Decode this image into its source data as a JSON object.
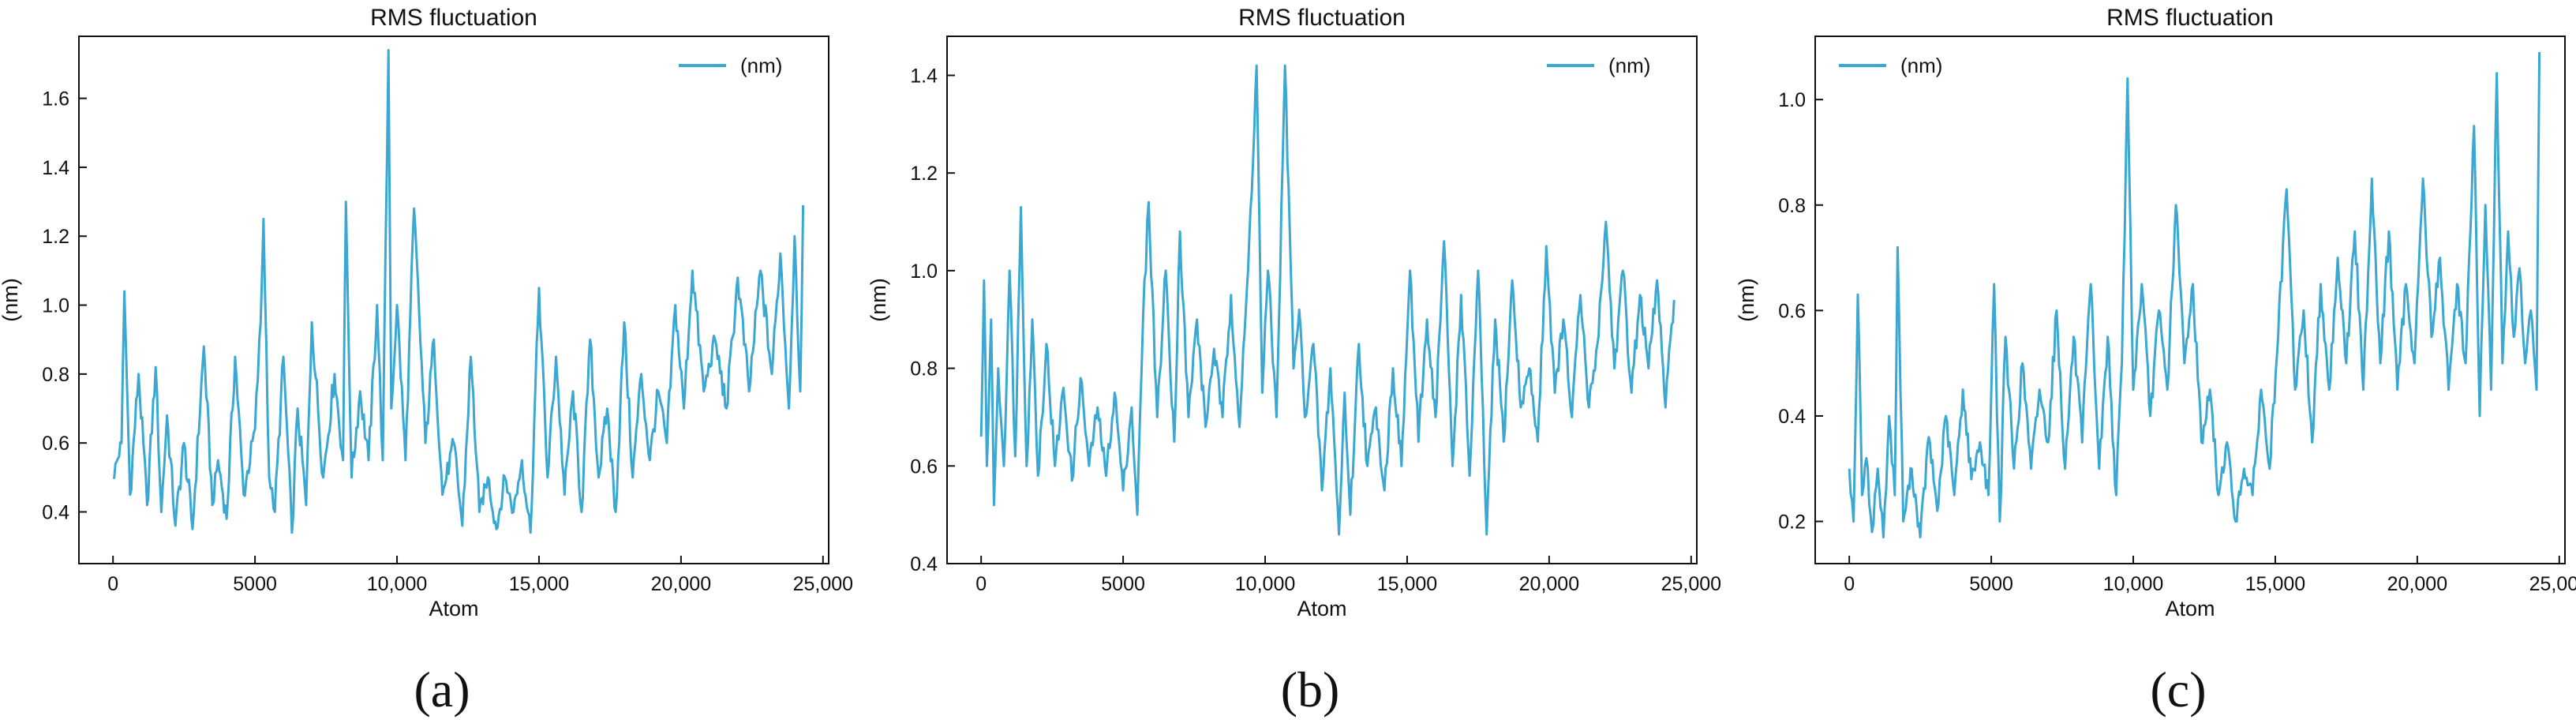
{
  "line_color": "#3aa8d3",
  "chart_data": [
    {
      "type": "line",
      "caption": "(a)",
      "title": "RMS fluctuation",
      "xlabel": "Atom",
      "ylabel": "(nm)",
      "xlim": [
        -1200,
        25200
      ],
      "ylim": [
        0.25,
        1.78
      ],
      "xticks": [
        0,
        5000,
        10000,
        15000,
        20000,
        25000
      ],
      "xtick_labels": [
        "0",
        "5000",
        "10,000",
        "15,000",
        "20,000",
        "25,000"
      ],
      "yticks": [
        0.4,
        0.6,
        0.8,
        1.0,
        1.2,
        1.4,
        1.6
      ],
      "ytick_labels": [
        "0.4",
        "0.6",
        "0.8",
        "1.0",
        "1.2",
        "1.4",
        "1.6"
      ],
      "legend": "upper-right",
      "series": [
        {
          "name": "(nm)",
          "x": [
            0,
            300,
            400,
            600,
            900,
            1200,
            1500,
            1700,
            1900,
            2200,
            2500,
            2800,
            3200,
            3500,
            3700,
            4000,
            4300,
            4600,
            5000,
            5200,
            5300,
            5500,
            5700,
            6000,
            6300,
            6500,
            6800,
            7000,
            7400,
            7800,
            8100,
            8200,
            8400,
            8700,
            9000,
            9300,
            9500,
            9700,
            9800,
            10000,
            10300,
            10600,
            11000,
            11300,
            11600,
            12000,
            12300,
            12600,
            12900,
            13200,
            13500,
            13800,
            14100,
            14400,
            14700,
            15000,
            15300,
            15600,
            15900,
            16200,
            16500,
            16800,
            17100,
            17400,
            17700,
            18000,
            18300,
            18600,
            18900,
            19200,
            19500,
            19800,
            20100,
            20400,
            20800,
            21200,
            21600,
            22000,
            22400,
            22800,
            23200,
            23500,
            23800,
            24000,
            24200,
            24300
          ],
          "y": [
            0.5,
            0.6,
            1.04,
            0.45,
            0.8,
            0.42,
            0.82,
            0.4,
            0.68,
            0.36,
            0.6,
            0.35,
            0.88,
            0.42,
            0.55,
            0.38,
            0.85,
            0.45,
            0.64,
            0.95,
            1.25,
            0.5,
            0.4,
            0.85,
            0.34,
            0.7,
            0.42,
            0.95,
            0.5,
            0.8,
            0.55,
            1.3,
            0.5,
            0.75,
            0.55,
            1.0,
            0.55,
            1.74,
            0.7,
            1.0,
            0.55,
            1.28,
            0.6,
            0.9,
            0.45,
            0.6,
            0.36,
            0.85,
            0.4,
            0.5,
            0.35,
            0.5,
            0.4,
            0.55,
            0.34,
            1.05,
            0.5,
            0.85,
            0.45,
            0.75,
            0.4,
            0.9,
            0.5,
            0.7,
            0.4,
            0.95,
            0.5,
            0.8,
            0.55,
            0.75,
            0.6,
            1.0,
            0.7,
            1.1,
            0.75,
            0.9,
            0.7,
            1.08,
            0.75,
            1.1,
            0.8,
            1.15,
            0.7,
            1.2,
            0.75,
            1.29
          ]
        }
      ]
    },
    {
      "type": "line",
      "caption": "(b)",
      "title": "RMS fluctuation",
      "xlabel": "Atom",
      "ylabel": "(nm)",
      "xlim": [
        -1200,
        25200
      ],
      "ylim": [
        0.4,
        1.48
      ],
      "xticks": [
        0,
        5000,
        10000,
        15000,
        20000,
        25000
      ],
      "xtick_labels": [
        "0",
        "5000",
        "10,000",
        "15,000",
        "20,000",
        "25,000"
      ],
      "yticks": [
        0.4,
        0.6,
        0.8,
        1.0,
        1.2,
        1.4
      ],
      "ytick_labels": [
        "0.4",
        "0.6",
        "0.8",
        "1.0",
        "1.2",
        "1.4"
      ],
      "legend": "upper-right",
      "series": [
        {
          "name": "(nm)",
          "x": [
            0,
            100,
            200,
            350,
            450,
            600,
            800,
            1000,
            1200,
            1400,
            1600,
            1800,
            2000,
            2300,
            2600,
            2900,
            3200,
            3500,
            3800,
            4100,
            4400,
            4700,
            5000,
            5300,
            5500,
            5700,
            5900,
            6200,
            6500,
            6800,
            7000,
            7300,
            7600,
            7900,
            8200,
            8500,
            8800,
            9100,
            9400,
            9700,
            9900,
            10100,
            10400,
            10700,
            11000,
            11200,
            11400,
            11700,
            12000,
            12300,
            12600,
            12800,
            13000,
            13300,
            13600,
            13900,
            14200,
            14500,
            14800,
            15100,
            15400,
            15700,
            16000,
            16300,
            16600,
            16900,
            17200,
            17500,
            17800,
            18100,
            18400,
            18700,
            19000,
            19300,
            19600,
            19900,
            20200,
            20500,
            20800,
            21100,
            21400,
            21700,
            22000,
            22300,
            22600,
            22900,
            23200,
            23500,
            23800,
            24100,
            24400
          ],
          "y": [
            0.66,
            0.98,
            0.6,
            0.9,
            0.52,
            0.8,
            0.6,
            1.0,
            0.62,
            1.13,
            0.6,
            0.9,
            0.58,
            0.85,
            0.6,
            0.76,
            0.57,
            0.78,
            0.6,
            0.72,
            0.58,
            0.75,
            0.55,
            0.72,
            0.5,
            0.9,
            1.14,
            0.7,
            1.0,
            0.65,
            1.08,
            0.7,
            0.9,
            0.68,
            0.84,
            0.7,
            0.95,
            0.68,
            1.0,
            1.42,
            0.75,
            1.0,
            0.7,
            1.42,
            0.8,
            0.92,
            0.7,
            0.85,
            0.55,
            0.8,
            0.46,
            0.75,
            0.5,
            0.85,
            0.6,
            0.72,
            0.55,
            0.8,
            0.6,
            1.0,
            0.65,
            0.9,
            0.7,
            1.06,
            0.6,
            0.95,
            0.58,
            1.0,
            0.46,
            0.9,
            0.65,
            0.98,
            0.72,
            0.8,
            0.65,
            1.05,
            0.75,
            0.9,
            0.7,
            0.95,
            0.72,
            0.85,
            1.1,
            0.8,
            1.0,
            0.75,
            0.95,
            0.8,
            0.98,
            0.72,
            0.94
          ]
        }
      ]
    },
    {
      "type": "line",
      "caption": "(c)",
      "title": "RMS fluctuation",
      "xlabel": "Atom",
      "ylabel": "(nm)",
      "xlim": [
        -1200,
        25200
      ],
      "ylim": [
        0.12,
        1.12
      ],
      "xticks": [
        0,
        5000,
        10000,
        15000,
        20000,
        25000
      ],
      "xtick_labels": [
        "0",
        "5000",
        "10,000",
        "15,000",
        "20,000",
        "25,000"
      ],
      "yticks": [
        0.2,
        0.4,
        0.6,
        0.8,
        1.0
      ],
      "ytick_labels": [
        "0.2",
        "0.4",
        "0.6",
        "0.8",
        "1.0"
      ],
      "legend": "upper-left",
      "series": [
        {
          "name": "(nm)",
          "x": [
            0,
            150,
            300,
            450,
            600,
            800,
            1000,
            1200,
            1400,
            1600,
            1700,
            1900,
            2200,
            2500,
            2800,
            3100,
            3400,
            3700,
            4000,
            4300,
            4600,
            4900,
            5100,
            5300,
            5500,
            5800,
            6100,
            6400,
            6700,
            7000,
            7300,
            7600,
            7900,
            8200,
            8500,
            8800,
            9100,
            9400,
            9600,
            9800,
            10000,
            10300,
            10600,
            10900,
            11200,
            11500,
            11800,
            12100,
            12400,
            12700,
            13000,
            13300,
            13600,
            13900,
            14200,
            14500,
            14800,
            15100,
            15400,
            15700,
            16000,
            16300,
            16600,
            16900,
            17200,
            17500,
            17800,
            18100,
            18400,
            18700,
            19000,
            19300,
            19600,
            19900,
            20200,
            20500,
            20800,
            21100,
            21400,
            21700,
            22000,
            22200,
            22400,
            22600,
            22800,
            23000,
            23200,
            23400,
            23600,
            23800,
            24000,
            24200,
            24300
          ],
          "y": [
            0.3,
            0.2,
            0.63,
            0.25,
            0.32,
            0.18,
            0.3,
            0.17,
            0.4,
            0.25,
            0.72,
            0.2,
            0.3,
            0.17,
            0.36,
            0.22,
            0.4,
            0.25,
            0.45,
            0.28,
            0.35,
            0.25,
            0.65,
            0.2,
            0.55,
            0.3,
            0.5,
            0.3,
            0.45,
            0.35,
            0.6,
            0.3,
            0.55,
            0.35,
            0.65,
            0.3,
            0.55,
            0.25,
            0.5,
            1.04,
            0.45,
            0.65,
            0.4,
            0.6,
            0.45,
            0.8,
            0.5,
            0.65,
            0.35,
            0.45,
            0.25,
            0.35,
            0.2,
            0.3,
            0.25,
            0.45,
            0.3,
            0.55,
            0.83,
            0.45,
            0.6,
            0.35,
            0.65,
            0.45,
            0.7,
            0.5,
            0.75,
            0.45,
            0.85,
            0.5,
            0.75,
            0.45,
            0.65,
            0.5,
            0.85,
            0.55,
            0.7,
            0.45,
            0.65,
            0.5,
            0.95,
            0.4,
            0.8,
            0.45,
            1.05,
            0.5,
            0.75,
            0.55,
            0.68,
            0.5,
            0.6,
            0.45,
            1.09
          ]
        }
      ]
    }
  ]
}
